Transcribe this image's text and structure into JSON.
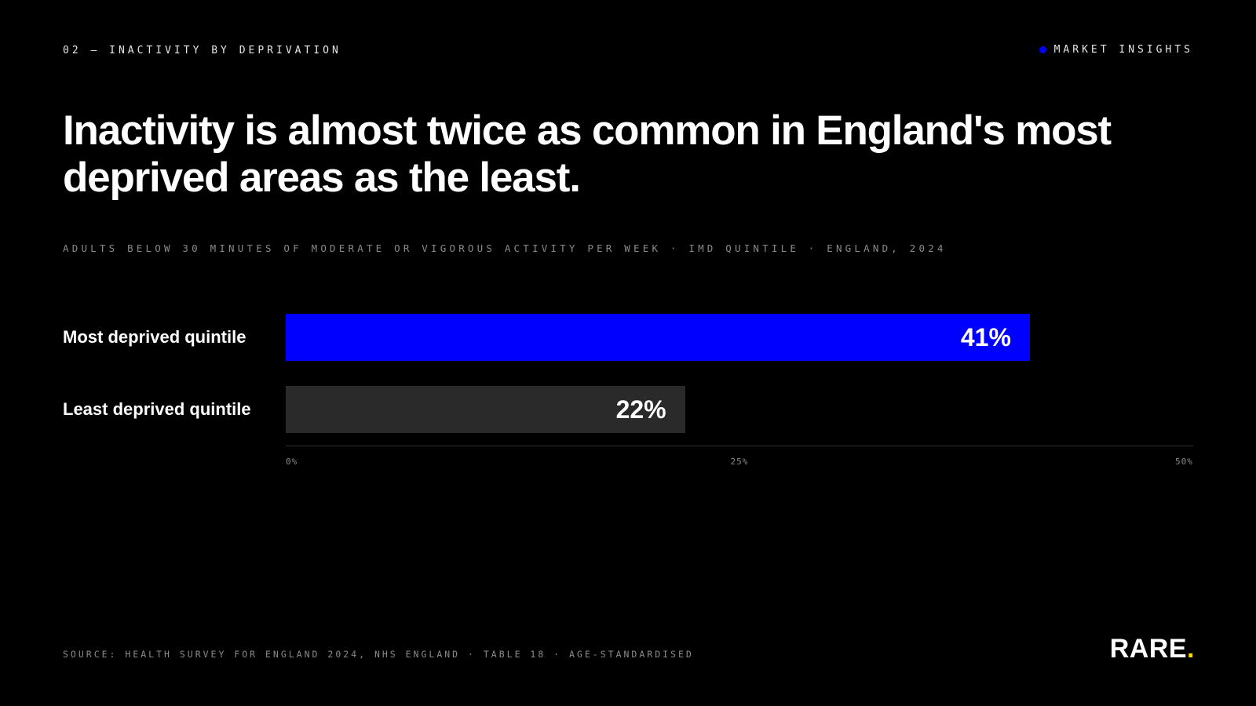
{
  "header": {
    "kicker": "02 — INACTIVITY BY DEPRIVATION",
    "brand_tag": "MARKET INSIGHTS"
  },
  "headline": "Inactivity is almost twice as common in England's most deprived areas as the least.",
  "chart_data": {
    "type": "bar",
    "orientation": "horizontal",
    "subtitle": "ADULTS BELOW 30 MINUTES OF MODERATE OR VIGOROUS ACTIVITY PER WEEK · IMD QUINTILE · ENGLAND, 2024",
    "categories": [
      "Most deprived quintile",
      "Least deprived quintile"
    ],
    "values": [
      41,
      22
    ],
    "value_labels": [
      "41%",
      "22%"
    ],
    "bar_colors": [
      "#0000ff",
      "#2a2a2a"
    ],
    "xlim": [
      0,
      50
    ],
    "ticks": [
      0,
      25,
      50
    ],
    "tick_labels": [
      "0%",
      "25%",
      "50%"
    ],
    "grid": false,
    "legend": "none"
  },
  "footer": {
    "source": "SOURCE: HEALTH SURVEY FOR ENGLAND 2024, NHS ENGLAND · TABLE 18 · AGE-STANDARDISED",
    "logo_text": "RARE",
    "logo_dot": "."
  },
  "colors": {
    "background": "#000000",
    "accent": "#0000ff",
    "logo_dot": "#ffd700"
  }
}
